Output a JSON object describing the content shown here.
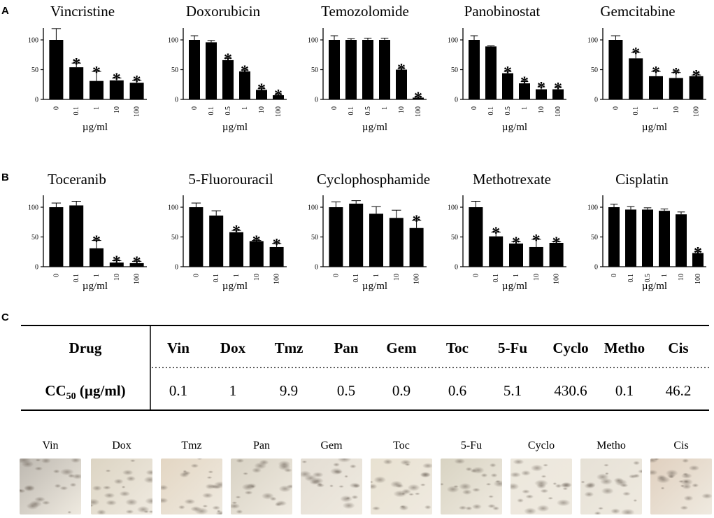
{
  "panel_labels": {
    "a": "A",
    "b": "B",
    "c": "C"
  },
  "chart_data": [
    {
      "type": "bar",
      "title": "Vincristine",
      "categories": [
        "0",
        "0.1",
        "1",
        "10",
        "100"
      ],
      "values": [
        100,
        54,
        31,
        32,
        28
      ],
      "errors": [
        19,
        7,
        16,
        4,
        4
      ],
      "significant": [
        false,
        true,
        true,
        true,
        true
      ],
      "xlabel": "µg/ml",
      "ylabel": "",
      "ylim": [
        0,
        120
      ],
      "yticks": [
        "0",
        "50",
        "100"
      ],
      "sig_marker": "*"
    },
    {
      "type": "bar",
      "title": "Doxorubicin",
      "categories": [
        "0",
        "0.1",
        "0.5",
        "1",
        "10",
        "100"
      ],
      "values": [
        100,
        96,
        66,
        47,
        16,
        7
      ],
      "errors": [
        7,
        3,
        3,
        2,
        2,
        1
      ],
      "significant": [
        false,
        false,
        true,
        true,
        true,
        true
      ],
      "xlabel": "µg/ml",
      "ylabel": "",
      "ylim": [
        0,
        120
      ],
      "yticks": [
        "0",
        "50",
        "100"
      ],
      "sig_marker": "*"
    },
    {
      "type": "bar",
      "title": "Temozolomide",
      "categories": [
        "0",
        "0.1",
        "0.5",
        "1",
        "10",
        "100"
      ],
      "values": [
        100,
        100,
        100,
        100,
        50,
        3
      ],
      "errors": [
        7,
        2,
        3,
        3,
        2,
        1
      ],
      "significant": [
        false,
        false,
        false,
        false,
        true,
        true
      ],
      "xlabel": "µg/ml",
      "ylabel": "",
      "ylim": [
        0,
        120
      ],
      "yticks": [
        "0",
        "50",
        "100"
      ],
      "sig_marker": "*"
    },
    {
      "type": "bar",
      "title": "Panobinostat",
      "categories": [
        "0",
        "0.1",
        "0.5",
        "1",
        "10",
        "100"
      ],
      "values": [
        100,
        89,
        44,
        27,
        17,
        17
      ],
      "errors": [
        7,
        1,
        3,
        3,
        4,
        3
      ],
      "significant": [
        false,
        false,
        true,
        true,
        true,
        true
      ],
      "xlabel": "µg/ml",
      "ylabel": "",
      "ylim": [
        0,
        120
      ],
      "yticks": [
        "0",
        "50",
        "100"
      ],
      "sig_marker": "*"
    },
    {
      "type": "bar",
      "title": "Gemcitabine",
      "categories": [
        "0",
        "0.1",
        "1",
        "10",
        "100"
      ],
      "values": [
        100,
        69,
        39,
        36,
        39
      ],
      "errors": [
        7,
        10,
        8,
        9,
        2
      ],
      "significant": [
        false,
        true,
        true,
        true,
        true
      ],
      "xlabel": "µg/ml",
      "ylabel": "",
      "ylim": [
        0,
        120
      ],
      "yticks": [
        "0",
        "50",
        "100"
      ],
      "sig_marker": "*"
    },
    {
      "type": "bar",
      "title": "Toceranib",
      "categories": [
        "0",
        "0.1",
        "1",
        "10",
        "100"
      ],
      "values": [
        100,
        103,
        31,
        7,
        6
      ],
      "errors": [
        7,
        7,
        13,
        3,
        3
      ],
      "significant": [
        false,
        false,
        true,
        true,
        true
      ],
      "xlabel": "µg/ml",
      "ylabel": "",
      "ylim": [
        0,
        120
      ],
      "yticks": [
        "0",
        "50",
        "100"
      ],
      "sig_marker": "*"
    },
    {
      "type": "bar",
      "title": "5-Fluorouracil",
      "categories": [
        "0",
        "0.1",
        "1",
        "10",
        "100"
      ],
      "values": [
        100,
        86,
        58,
        43,
        33
      ],
      "errors": [
        7,
        8,
        3,
        1,
        6
      ],
      "significant": [
        false,
        false,
        true,
        true,
        true
      ],
      "xlabel": "µg/ml",
      "ylabel": "",
      "ylim": [
        0,
        120
      ],
      "yticks": [
        "0",
        "50",
        "100"
      ],
      "sig_marker": "*"
    },
    {
      "type": "bar",
      "title": "Cyclophosphamide",
      "categories": [
        "0",
        "0.1",
        "1",
        "10",
        "100"
      ],
      "values": [
        100,
        106,
        89,
        82,
        65
      ],
      "errors": [
        9,
        5,
        12,
        13,
        13
      ],
      "significant": [
        false,
        false,
        false,
        false,
        true
      ],
      "xlabel": "µg/ml",
      "ylabel": "",
      "ylim": [
        0,
        120
      ],
      "yticks": [
        "0",
        "50",
        "100"
      ],
      "sig_marker": "*"
    },
    {
      "type": "bar",
      "title": "Methotrexate",
      "categories": [
        "0",
        "0.1",
        "1",
        "10",
        "100"
      ],
      "values": [
        100,
        51,
        39,
        33,
        40
      ],
      "errors": [
        10,
        7,
        3,
        13,
        2
      ],
      "significant": [
        false,
        true,
        true,
        true,
        true
      ],
      "xlabel": "µg/ml",
      "ylabel": "",
      "ylim": [
        0,
        120
      ],
      "yticks": [
        "0",
        "50",
        "100"
      ],
      "sig_marker": "*"
    },
    {
      "type": "bar",
      "title": "Cisplatin",
      "categories": [
        "0",
        "0.1",
        "0.5",
        "1",
        "10",
        "100"
      ],
      "values": [
        100,
        96,
        96,
        94,
        88,
        23
      ],
      "errors": [
        5,
        5,
        3,
        3,
        4,
        2
      ],
      "significant": [
        false,
        false,
        false,
        false,
        false,
        true
      ],
      "xlabel": "µg/ml",
      "ylabel": "",
      "ylim": [
        0,
        120
      ],
      "yticks": [
        "0",
        "50",
        "100"
      ],
      "sig_marker": "*"
    }
  ],
  "cc50_table": {
    "row1_header": "Drug",
    "row2_header_main": "CC",
    "row2_header_sub": "50",
    "row2_header_unit": " (µg/ml)",
    "drugs": [
      "Vin",
      "Dox",
      "Tmz",
      "Pan",
      "Gem",
      "Toc",
      "5-Fu",
      "Cyclo",
      "Metho",
      "Cis"
    ],
    "values": [
      "0.1",
      "1",
      "9.9",
      "0.5",
      "0.9",
      "0.6",
      "5.1",
      "430.6",
      "0.1",
      "46.2"
    ]
  },
  "images": {
    "labels": [
      "Vin",
      "Dox",
      "Tmz",
      "Pan",
      "Gem",
      "Toc",
      "5-Fu",
      "Cyclo",
      "Metho",
      "Cis"
    ],
    "tints": [
      "#bdb8b0",
      "#dcd4c3",
      "#e3d6c3",
      "#d8d2c4",
      "#e3ddd3",
      "#e8e1d1",
      "#d8d3c2",
      "#ece7dc",
      "#e6e1d6",
      "#e0d0bf"
    ]
  }
}
